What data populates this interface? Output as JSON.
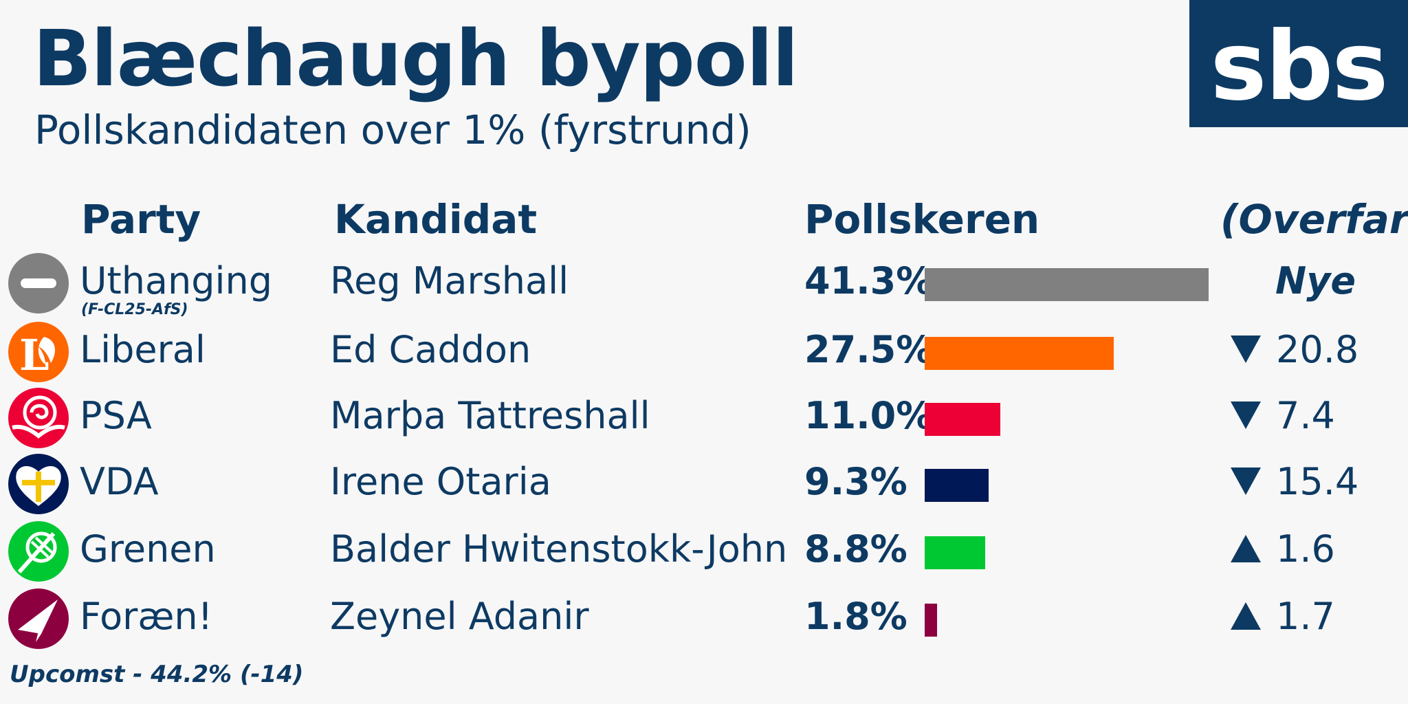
{
  "header": {
    "title": "Blæchaugh bypoll",
    "subtitle": "Pollskandidaten over 1% (fyrstrund)",
    "logo": "sbs"
  },
  "columns": {
    "party": "Party",
    "candidate": "Kandidat",
    "poll": "Pollskeren",
    "change": "(Overfare)"
  },
  "rows": [
    {
      "party": "Uthanging",
      "party_sub": "(F-CL25-AfS)",
      "candidate": "Reg Marshall",
      "pct_label": "41.3%",
      "change": "Nye",
      "direction": "none",
      "color": "#808080",
      "icon": "minus-circle-icon"
    },
    {
      "party": "Liberal",
      "party_sub": "",
      "candidate": "Ed Caddon",
      "pct_label": "27.5%",
      "change": "20.8",
      "direction": "down",
      "color": "#ff6600",
      "icon": "liberal-logo-icon"
    },
    {
      "party": "PSA",
      "party_sub": "",
      "candidate": "Marþa Tattreshall",
      "pct_label": "11.0%",
      "change": "7.4",
      "direction": "down",
      "color": "#ec0036",
      "icon": "rose-icon"
    },
    {
      "party": "VDA",
      "party_sub": "",
      "candidate": "Irene Otaria",
      "pct_label": "9.3%",
      "change": "15.4",
      "direction": "down",
      "color": "#001855",
      "icon": "heart-cross-icon"
    },
    {
      "party": "Grenen",
      "party_sub": "",
      "candidate": "Balder Hwitenstokk-John",
      "pct_label": "8.8%",
      "change": "1.6",
      "direction": "up",
      "color": "#00c832",
      "icon": "green-branch-icon"
    },
    {
      "party": "Foræn!",
      "party_sub": "",
      "candidate": "Zeynel Adanir",
      "pct_label": "1.8%",
      "change": "1.7",
      "direction": "up",
      "color": "#8c0040",
      "icon": "paper-plane-icon"
    }
  ],
  "footnote": "Upcomst - 44.2% (-14)",
  "chart_data": {
    "type": "bar",
    "orientation": "horizontal",
    "categories": [
      "Uthanging",
      "Liberal",
      "PSA",
      "VDA",
      "Grenen",
      "Foræn!"
    ],
    "values": [
      41.3,
      27.5,
      11.0,
      9.3,
      8.8,
      1.8
    ],
    "colors": [
      "#808080",
      "#ff6600",
      "#ec0036",
      "#001855",
      "#00c832",
      "#8c0040"
    ],
    "xlim": [
      0,
      41.3
    ],
    "grid": false
  }
}
